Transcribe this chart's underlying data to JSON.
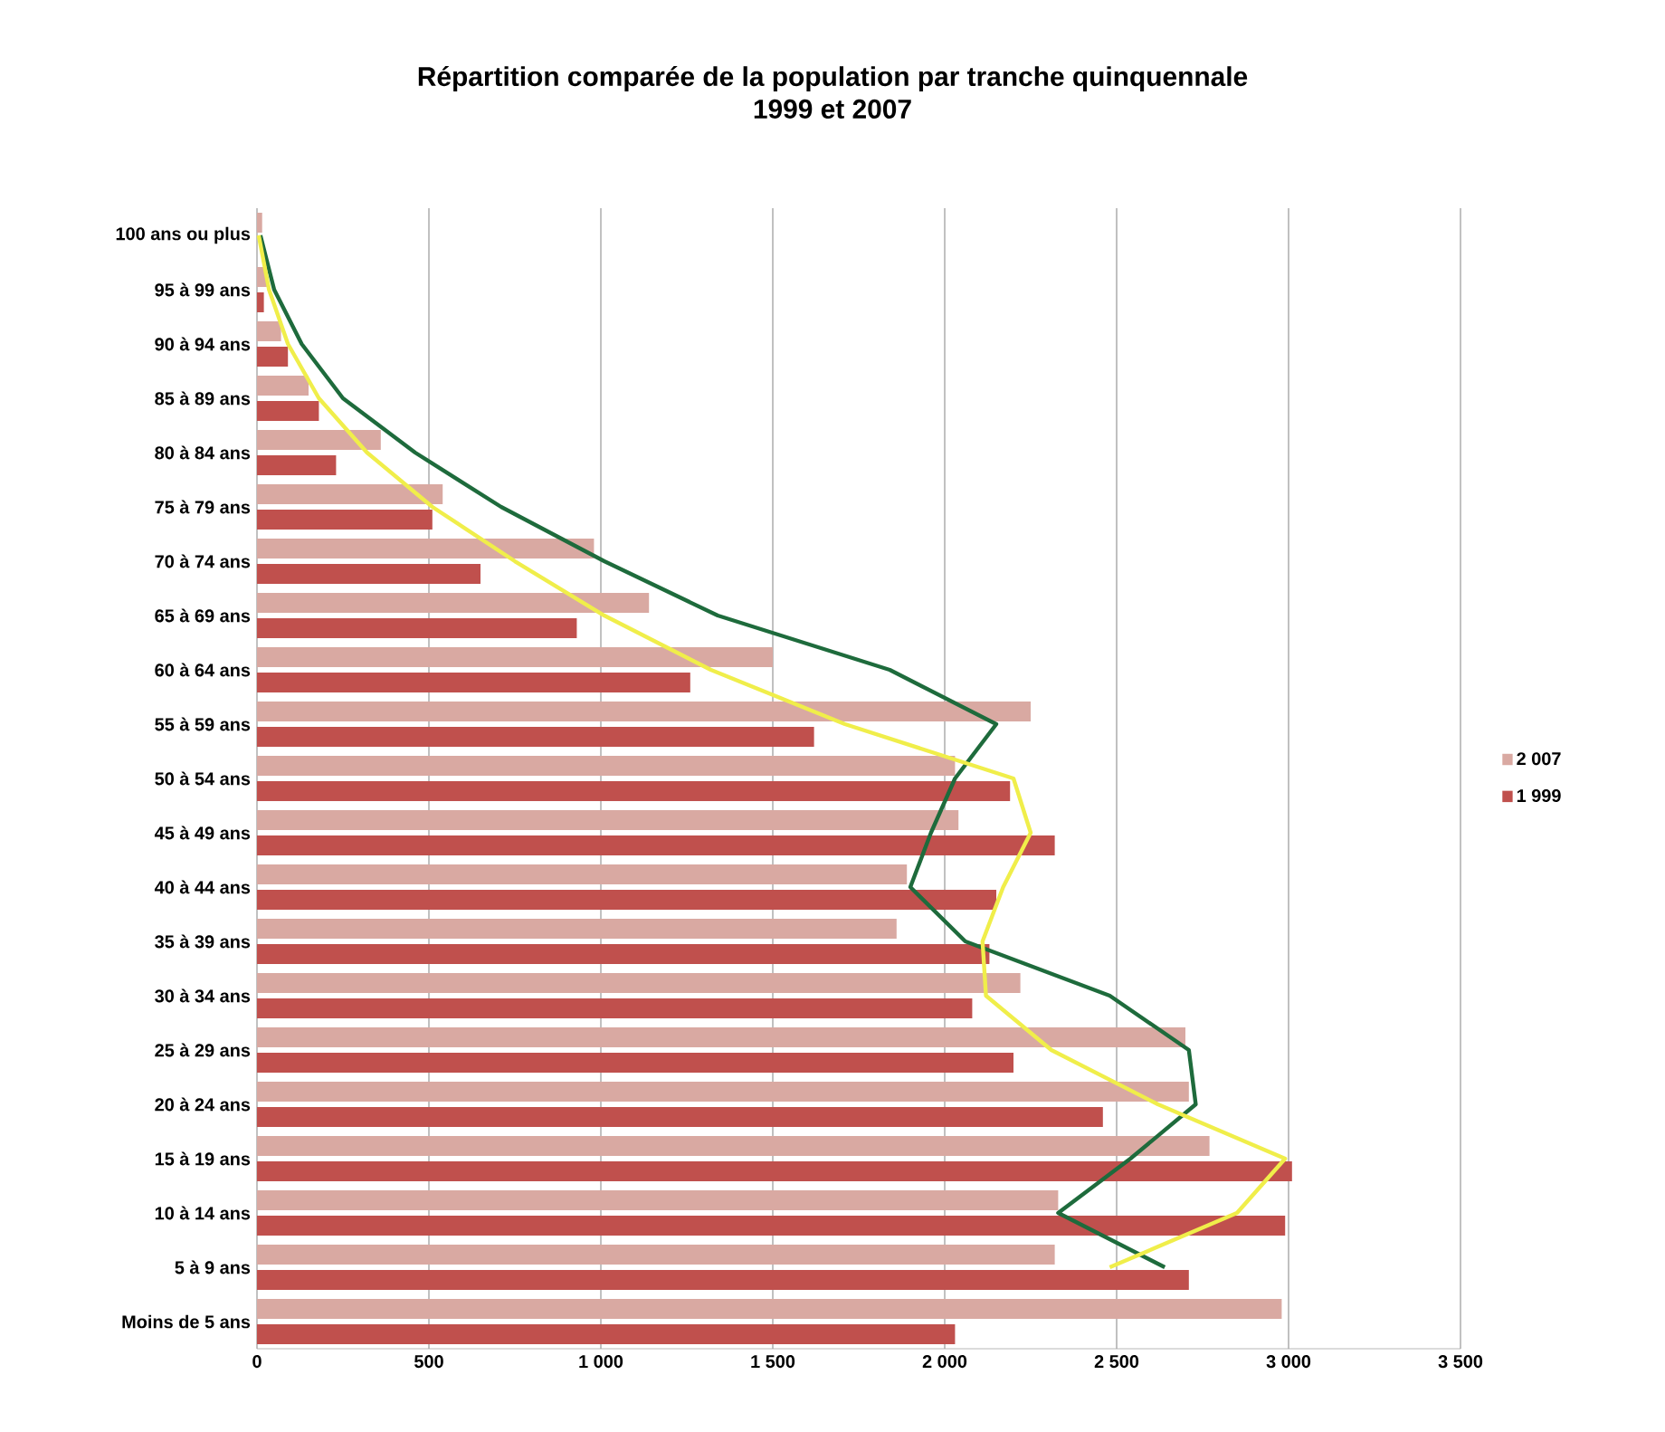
{
  "chart_data": {
    "type": "bar",
    "orientation": "horizontal",
    "title": "Répartition comparée de la population par tranche quinquennale",
    "subtitle": "1999 et 2007",
    "categories": [
      "100 ans ou plus",
      "95 à 99 ans",
      "90 à 94 ans",
      "85 à 89 ans",
      "80 à 84 ans",
      "75 à 79 ans",
      "70 à 74 ans",
      "65 à 69 ans",
      "60 à 64 ans",
      "55 à 59 ans",
      "50 à 54 ans",
      "45 à 49 ans",
      "40 à 44 ans",
      "35 à 39 ans",
      "30 à 34 ans",
      "25 à 29 ans",
      "20 à 24 ans",
      "15 à 19 ans",
      "10 à 14 ans",
      "5 à 9 ans",
      "Moins de 5 ans"
    ],
    "series": [
      {
        "name": "2 007",
        "color": "#d9a9a2",
        "values": [
          15,
          30,
          70,
          150,
          360,
          540,
          980,
          1140,
          1500,
          2250,
          2030,
          2040,
          1890,
          1860,
          2220,
          2700,
          2710,
          2770,
          2330,
          2320,
          2980
        ]
      },
      {
        "name": "1 999",
        "color": "#c0504d",
        "values": [
          null,
          20,
          90,
          180,
          230,
          510,
          650,
          930,
          1260,
          1620,
          2190,
          2320,
          2150,
          2130,
          2080,
          2200,
          2460,
          3010,
          2990,
          2710,
          2030
        ]
      },
      {
        "type": "line",
        "color": "#1e6b3c",
        "values": [
          10,
          50,
          130,
          250,
          460,
          710,
          1010,
          1340,
          1840,
          2150,
          2030,
          1960,
          1900,
          2060,
          2480,
          2710,
          2730,
          2540,
          2330,
          2640,
          null
        ]
      },
      {
        "type": "line",
        "color": "#f0ee4a",
        "values": [
          5,
          35,
          90,
          180,
          320,
          510,
          750,
          1010,
          1320,
          1710,
          2200,
          2250,
          2170,
          2110,
          2120,
          2310,
          2620,
          2990,
          2850,
          2480,
          null
        ]
      }
    ],
    "xlim": [
      0,
      3500
    ],
    "xticks": [
      0,
      500,
      {
        "value": 1000,
        "label": "1 000"
      },
      {
        "value": 1500,
        "label": "1 500"
      },
      {
        "value": 2000,
        "label": "2 000"
      },
      {
        "value": 2500,
        "label": "2 500"
      },
      {
        "value": 3000,
        "label": "3 000"
      },
      {
        "value": 3500,
        "label": "3 500"
      }
    ],
    "grid": "x",
    "legend": "right",
    "marker": "none",
    "line_style": "solid"
  }
}
